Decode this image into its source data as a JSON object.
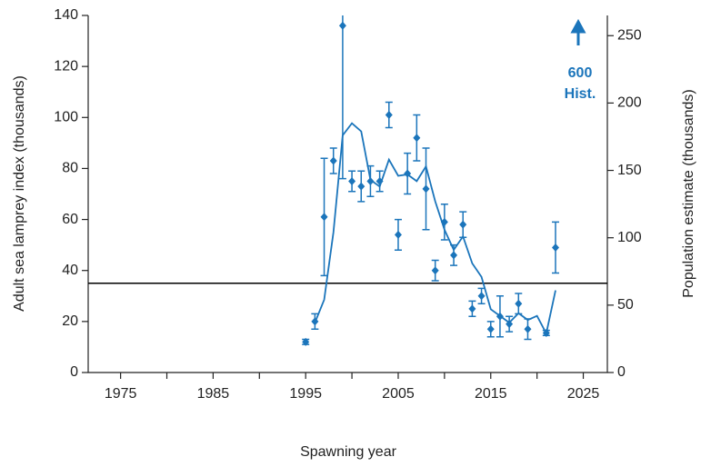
{
  "chart_data": {
    "type": "errorbar-line",
    "xlabel": "Spawning year",
    "ylabel": "Adult sea lamprey index  (thousands)",
    "y2label": "Population estimate  (thousands)",
    "xlim": [
      1971.5,
      2027.6
    ],
    "xticks": [
      1975,
      1985,
      1995,
      2005,
      2015,
      2025
    ],
    "xminorticks": [
      1980,
      1990,
      2000,
      2010,
      2020
    ],
    "ylim": [
      0,
      140
    ],
    "yticks": [
      0,
      20,
      40,
      60,
      80,
      100,
      120,
      140
    ],
    "y2lim": [
      0,
      265
    ],
    "y2ticks": [
      0,
      50,
      100,
      150,
      200,
      250
    ],
    "target": 35,
    "target_color": "#000000",
    "annotation": [
      "600",
      "Hist."
    ],
    "series": [
      {
        "color": "#1b75bb",
        "x": [
          1995,
          1996,
          1997,
          1998,
          1999,
          2000,
          2001,
          2002,
          2003,
          2004,
          2005,
          2006,
          2007,
          2008,
          2009,
          2010,
          2011,
          2012,
          2013,
          2014,
          2015,
          2016,
          2017,
          2018,
          2019,
          2021,
          2022
        ],
        "values": [
          12,
          20,
          61,
          83,
          136,
          75,
          73,
          75,
          75,
          101,
          54,
          78,
          92,
          72,
          40,
          59,
          46,
          58,
          25,
          30,
          17,
          22,
          19,
          27,
          17,
          15.5,
          49
        ],
        "errors": [
          1,
          3,
          23,
          5,
          60,
          4,
          6,
          6,
          4,
          5,
          6,
          8,
          9,
          16,
          4,
          7,
          4,
          5,
          3,
          3,
          3,
          8,
          3,
          4,
          4,
          1,
          10
        ]
      },
      {
        "color": "#1b75bb",
        "axis": "y2",
        "x": [
          1996,
          1997,
          1998,
          1999,
          2000,
          2001,
          2002,
          2003,
          2004,
          2005,
          2006,
          2007,
          2008,
          2009,
          2010,
          2011,
          2012,
          2013,
          2014,
          2015,
          2016,
          2017,
          2018,
          2019,
          2020,
          2021,
          2022
        ],
        "values": [
          37,
          54,
          104,
          176,
          185,
          179,
          143,
          138,
          158,
          146,
          147,
          142,
          153,
          127,
          106,
          91,
          101,
          81,
          71,
          47,
          42,
          37,
          44,
          39,
          42,
          29,
          61
        ]
      }
    ]
  }
}
